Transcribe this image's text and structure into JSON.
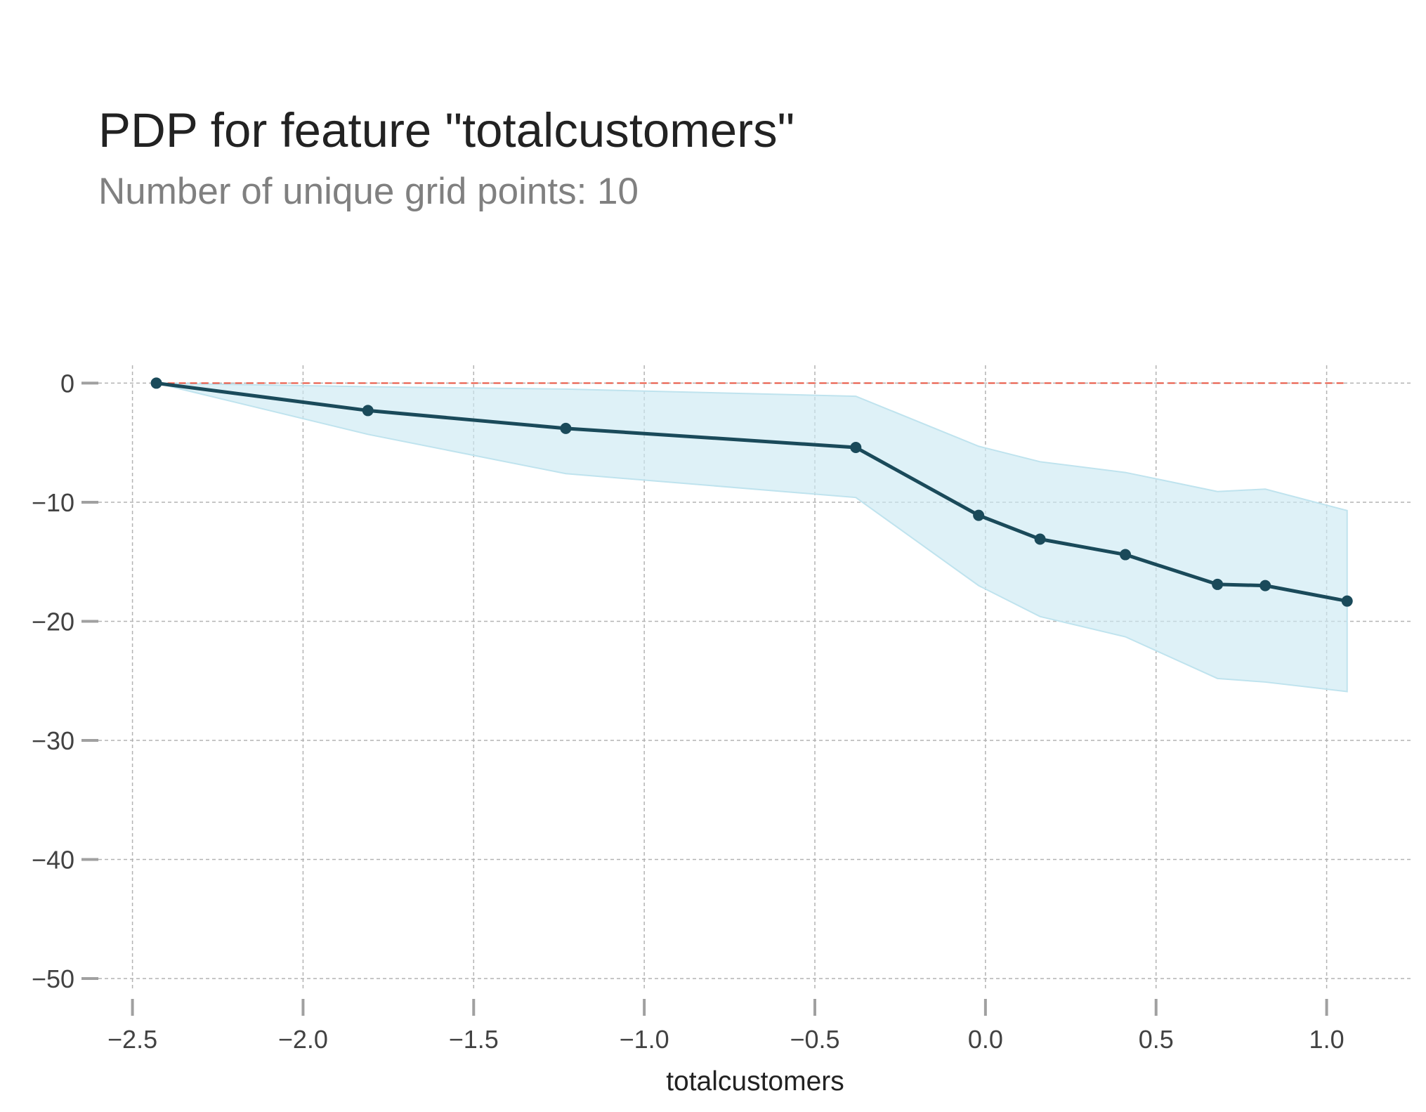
{
  "chart_data": {
    "type": "line",
    "title": "PDP for feature \"totalcustomers\"",
    "subtitle": "Number of unique grid points: 10",
    "xlabel": "totalcustomers",
    "ylabel": "",
    "xlim": [
      -2.6,
      1.25
    ],
    "ylim": [
      -51,
      1.5
    ],
    "x_ticks": [
      -2.5,
      -2.0,
      -1.5,
      -1.0,
      -0.5,
      0.0,
      0.5,
      1.0
    ],
    "x_tick_labels": [
      "−2.5",
      "−2.0",
      "−1.5",
      "−1.0",
      "−0.5",
      "0.0",
      "0.5",
      "1.0"
    ],
    "y_ticks": [
      0,
      -10,
      -20,
      -30,
      -40,
      -50
    ],
    "y_tick_labels": [
      "0",
      "−10",
      "−20",
      "−30",
      "−40",
      "−50"
    ],
    "grid": true,
    "series": [
      {
        "x": [
          -2.43,
          -1.81,
          -1.23,
          -0.38,
          -0.02,
          0.16,
          0.41,
          0.68,
          0.82,
          1.06
        ],
        "y": [
          0,
          -2.3,
          -3.8,
          -5.4,
          -11.1,
          -13.1,
          -14.4,
          -16.9,
          -17.0,
          -18.3
        ],
        "upper": [
          0,
          -0.3,
          -0.5,
          -1.1,
          -5.3,
          -6.6,
          -7.5,
          -9.1,
          -8.9,
          -10.7
        ],
        "lower": [
          0,
          -4.3,
          -7.6,
          -9.6,
          -17.0,
          -19.6,
          -21.3,
          -24.8,
          -25.1,
          -25.9
        ],
        "color": "#1a4a5a",
        "band_color": "#cdeaf3"
      }
    ],
    "reference_line": {
      "y": 0,
      "color": "#e8513d",
      "style": "dashed"
    }
  }
}
